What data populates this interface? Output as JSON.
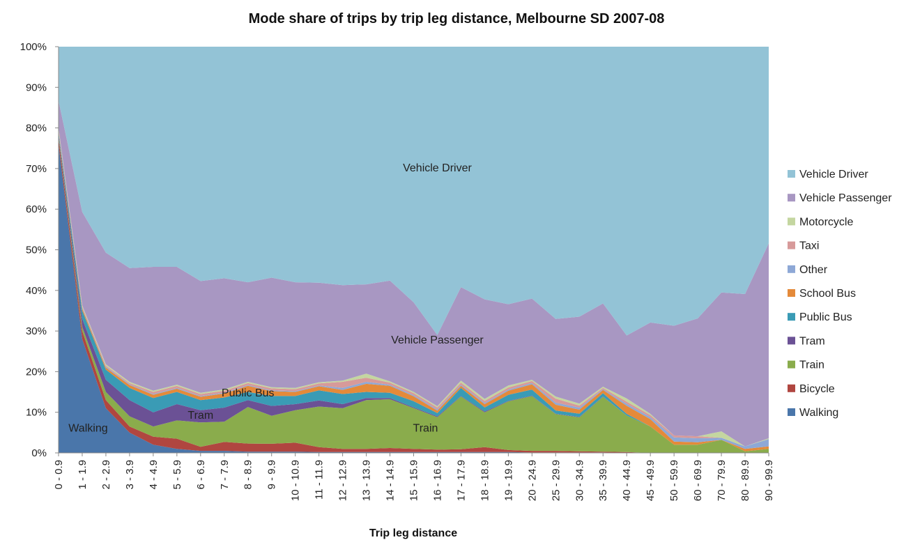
{
  "chart_data": {
    "type": "area",
    "stacked": "percent",
    "title": "Mode share of trips by trip leg distance, Melbourne SD 2007-08",
    "xlabel": "Trip leg distance",
    "ylabel": "",
    "ylim": [
      0,
      100
    ],
    "yticks": [
      "0%",
      "10%",
      "20%",
      "30%",
      "40%",
      "50%",
      "60%",
      "70%",
      "80%",
      "90%",
      "100%"
    ],
    "grid": false,
    "legend_position": "right",
    "categories": [
      "0 - 0.9",
      "1 - 1.9",
      "2 - 2.9",
      "3 - 3.9",
      "4 - 4.9",
      "5 - 5.9",
      "6 - 6.9",
      "7 - 7.9",
      "8 - 8.9",
      "9 - 9.9",
      "10 - 10.9",
      "11 - 11.9",
      "12 - 12.9",
      "13 - 13.9",
      "14 - 14.9",
      "15 - 15.9",
      "16 - 16.9",
      "17 - 17.9",
      "18 - 18.9",
      "19 - 19.9",
      "20 - 24.9",
      "25 - 29.9",
      "30 - 34.9",
      "35 - 39.9",
      "40 - 44.9",
      "45 - 49.9",
      "50 - 59.9",
      "60 - 69.9",
      "70 - 79.9",
      "80 - 89.9",
      "90 - 99.9"
    ],
    "series": [
      {
        "name": "Walking",
        "color": "#4a76aa",
        "values": [
          76,
          28,
          11,
          5,
          2,
          1,
          0.5,
          0.5,
          0.3,
          0.3,
          0.3,
          0.2,
          0.2,
          0.2,
          0.2,
          0.2,
          0.2,
          0.2,
          0.2,
          0.2,
          0.1,
          0.1,
          0.1,
          0.1,
          0,
          0,
          0,
          0,
          0,
          0,
          0
        ]
      },
      {
        "name": "Bicycle",
        "color": "#b04640",
        "values": [
          1.5,
          2,
          2,
          1.5,
          2,
          2.5,
          1,
          2.2,
          2,
          2,
          2.2,
          1.2,
          0.8,
          0.8,
          1,
          0.8,
          0.6,
          0.7,
          1.2,
          0.5,
          0.4,
          0.4,
          0.3,
          0.2,
          0.2,
          0,
          0,
          0,
          0,
          0,
          0
        ]
      },
      {
        "name": "Train",
        "color": "#8aac4c",
        "values": [
          0.5,
          1,
          2,
          2.5,
          2.5,
          4.5,
          6,
          5,
          9,
          7,
          8,
          10,
          10,
          12,
          12,
          10,
          8,
          13,
          8.6,
          12,
          13.5,
          9,
          8.4,
          13.5,
          9,
          6.5,
          2,
          2,
          3.2,
          0.4,
          1
        ]
      },
      {
        "name": "Tram",
        "color": "#6b5195",
        "values": [
          0.5,
          2,
          3,
          4,
          3.5,
          4,
          3,
          3.5,
          1.7,
          2.5,
          1.5,
          1.5,
          1,
          0.5,
          0.3,
          0.2,
          0.2,
          0.1,
          0.2,
          0.1,
          0.1,
          0.1,
          0.1,
          0.1,
          0,
          0,
          0,
          0,
          0,
          0,
          0
        ]
      },
      {
        "name": "Public Bus",
        "color": "#3a9bb5",
        "values": [
          0.5,
          2,
          2.5,
          3,
          3.5,
          3,
          2.5,
          2.5,
          2,
          2.5,
          2,
          2.5,
          2.5,
          1.5,
          1.3,
          1.5,
          0.8,
          2,
          1,
          1.5,
          1.5,
          0.8,
          0.8,
          0.8,
          0.4,
          0,
          0,
          0,
          0,
          0,
          0
        ]
      },
      {
        "name": "School Bus",
        "color": "#e48a3a",
        "values": [
          0.3,
          0.5,
          0.5,
          0.7,
          0.8,
          0.8,
          0.8,
          1,
          1.5,
          1.2,
          1,
          1,
          1,
          2,
          1.7,
          1.2,
          0.6,
          0.5,
          0.8,
          1,
          1.3,
          1.4,
          1,
          0.8,
          2,
          1.8,
          0.8,
          0.6,
          0,
          0.6,
          0.6
        ]
      },
      {
        "name": "Other",
        "color": "#8ea8d6",
        "values": [
          0.2,
          0.2,
          0.2,
          0.2,
          0.2,
          0.2,
          0.2,
          0.2,
          0.2,
          0.2,
          0.2,
          0.2,
          0.5,
          0.5,
          0.3,
          0.3,
          0.3,
          0.3,
          0.3,
          0.3,
          0.3,
          0.5,
          0.5,
          0.2,
          0.5,
          0.5,
          1,
          1,
          0.5,
          0.6,
          1.8
        ]
      },
      {
        "name": "Taxi",
        "color": "#d79a9a",
        "values": [
          0.3,
          0.3,
          0.3,
          0.3,
          0.5,
          0.5,
          0.5,
          0.5,
          0.5,
          0.5,
          0.5,
          0.5,
          1.5,
          1,
          0.5,
          0.5,
          0.5,
          0.5,
          0.5,
          0.5,
          0.5,
          1,
          0.5,
          0.3,
          0.5,
          0.5,
          0.5,
          0.5,
          0,
          0,
          0
        ]
      },
      {
        "name": "Motorcycle",
        "color": "#c4d6a0",
        "values": [
          0.3,
          0.3,
          0.3,
          0.3,
          0.3,
          0.3,
          0.3,
          0.3,
          0.3,
          0.3,
          0.3,
          0.3,
          0.3,
          1,
          0.3,
          0.3,
          0.3,
          0.5,
          0.5,
          0.5,
          0.3,
          0.5,
          0.5,
          0.3,
          0.8,
          0.3,
          0,
          0,
          1.6,
          0,
          0.2
        ]
      },
      {
        "name": "Vehicle Passenger",
        "color": "#a897c2",
        "values": [
          6.6,
          23,
          27.5,
          28,
          30.5,
          29,
          27.5,
          27.5,
          24.5,
          27.5,
          26,
          24.5,
          23.5,
          22,
          24.8,
          22,
          17.5,
          23,
          24.5,
          20,
          20,
          19,
          21.5,
          20.5,
          15.5,
          22.5,
          27,
          29,
          34.2,
          37.5,
          48
        ]
      },
      {
        "name": "Vehicle Driver",
        "color": "#93c3d6",
        "values": [
          13.3,
          40.7,
          50.7,
          54.5,
          54.2,
          54.2,
          57.7,
          57.3,
          58,
          58,
          58,
          58.1,
          58.7,
          58.5,
          57.6,
          62.8,
          71,
          59.2,
          62.2,
          63.4,
          62,
          66.7,
          66.8,
          63.2,
          71.1,
          67.9,
          68.7,
          66.9,
          60.5,
          60.9,
          48.4
        ]
      }
    ],
    "annotations": [
      {
        "text": "Vehicle Driver",
        "series": "Vehicle Driver"
      },
      {
        "text": "Vehicle Passenger",
        "series": "Vehicle Passenger"
      },
      {
        "text": "Public Bus",
        "series": "Public Bus"
      },
      {
        "text": "Tram",
        "series": "Tram"
      },
      {
        "text": "Train",
        "series": "Train"
      },
      {
        "text": "Walking",
        "series": "Walking"
      }
    ]
  }
}
